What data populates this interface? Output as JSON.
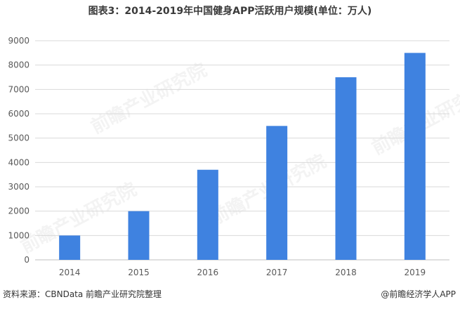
{
  "header": {
    "title": "图表3：2014-2019年中国健身APP活跃用户规模(单位：万人)"
  },
  "footer": {
    "source": "资料来源：CBNData 前瞻产业研究院整理",
    "brand": "@前瞻经济学人APP"
  },
  "watermark": {
    "text": "前瞻产业研究院"
  },
  "chart_data": {
    "type": "bar",
    "categories": [
      "2014",
      "2015",
      "2016",
      "2017",
      "2018",
      "2019"
    ],
    "values": [
      1000,
      2000,
      3700,
      5500,
      7500,
      8500
    ],
    "title": "图表3：2014-2019年中国健身APP活跃用户规模(单位：万人)",
    "xlabel": "",
    "ylabel": "",
    "ylim": [
      0,
      9000
    ],
    "yticks": [
      0,
      1000,
      2000,
      3000,
      4000,
      5000,
      6000,
      7000,
      8000,
      9000
    ],
    "grid": true,
    "legend": "none",
    "bar_color": "#3f82e0",
    "grid_color": "#d9d9d9"
  }
}
